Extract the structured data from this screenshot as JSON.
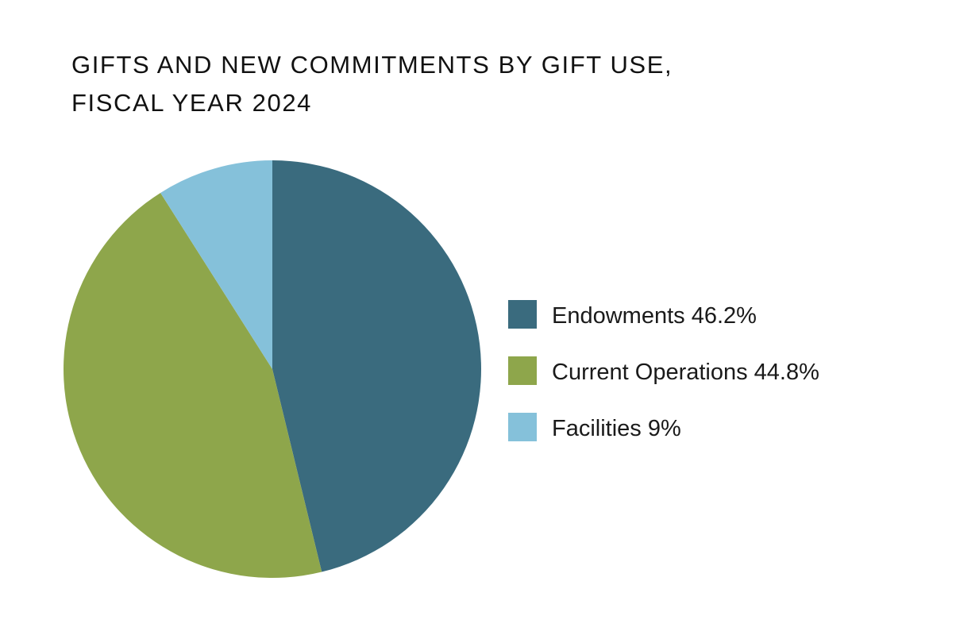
{
  "chart_data": {
    "type": "pie",
    "title_lines": [
      "GIFTS AND NEW COMMITMENTS BY GIFT USE,",
      "FISCAL YEAR 2024"
    ],
    "slices": [
      {
        "label": "Endowments 46.2%",
        "name": "Endowments",
        "value": 46.2,
        "color": "#3a6b7e"
      },
      {
        "label": "Current Operations 44.8%",
        "name": "Current Operations",
        "value": 44.8,
        "color": "#8ea64b"
      },
      {
        "label": "Facilities 9%",
        "name": "Facilities",
        "value": 9,
        "color": "#85c1da"
      }
    ],
    "start_angle_deg": 0,
    "direction": "clockwise",
    "legend_position": "right"
  }
}
